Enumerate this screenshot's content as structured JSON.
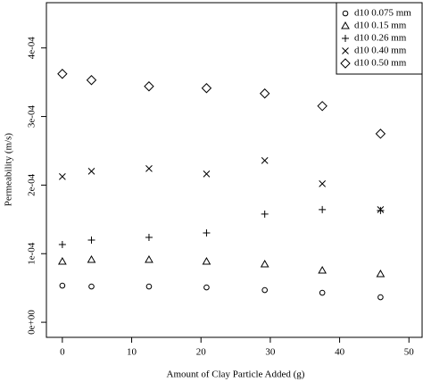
{
  "chart_data": {
    "type": "scatter",
    "xlabel": "Amount of Clay Particle Added (g)",
    "ylabel": "Permeability (m/s)",
    "x": [
      0,
      4.2,
      12.5,
      20.8,
      29.2,
      37.5,
      45.9
    ],
    "xlim": [
      -2.3,
      51.9
    ],
    "xticks": [
      0,
      10,
      20,
      30,
      40,
      50
    ],
    "ylim": [
      -2.2e-05,
      0.000466
    ],
    "yticks": [
      {
        "value": 0,
        "label": "0e+00"
      },
      {
        "value": 0.0001,
        "label": "1e-04"
      },
      {
        "value": 0.0002,
        "label": "2e-04"
      },
      {
        "value": 0.0003,
        "label": "3e-04"
      },
      {
        "value": 0.0004,
        "label": "4e-04"
      }
    ],
    "legend": "top-right",
    "series": [
      {
        "name": "d10 0.075 mm",
        "marker": "circle",
        "color": "#000000",
        "values": [
          5.34e-05,
          5.21e-05,
          5.21e-05,
          5.08e-05,
          4.69e-05,
          4.3e-05,
          3.65e-05
        ]
      },
      {
        "name": "d10 0.15 mm",
        "marker": "triangle",
        "color": "#000000",
        "values": [
          8.86e-05,
          9.12e-05,
          9.12e-05,
          8.86e-05,
          8.47e-05,
          7.56e-05,
          7.04e-05
        ]
      },
      {
        "name": "d10 0.26 mm",
        "marker": "plus",
        "color": "#000000",
        "values": [
          0.0001134,
          0.0001199,
          0.0001238,
          0.0001303,
          0.0001577,
          0.0001642,
          0.0001629
        ]
      },
      {
        "name": "d10 0.40 mm",
        "marker": "cross",
        "color": "#000000",
        "values": [
          0.0002124,
          0.0002202,
          0.0002241,
          0.0002163,
          0.0002358,
          0.000202,
          0.0001642
        ]
      },
      {
        "name": "d10 0.50 mm",
        "marker": "diamond",
        "color": "#000000",
        "values": [
          0.0003622,
          0.0003531,
          0.000344,
          0.0003414,
          0.0003336,
          0.0003153,
          0.0002749
        ]
      }
    ]
  }
}
